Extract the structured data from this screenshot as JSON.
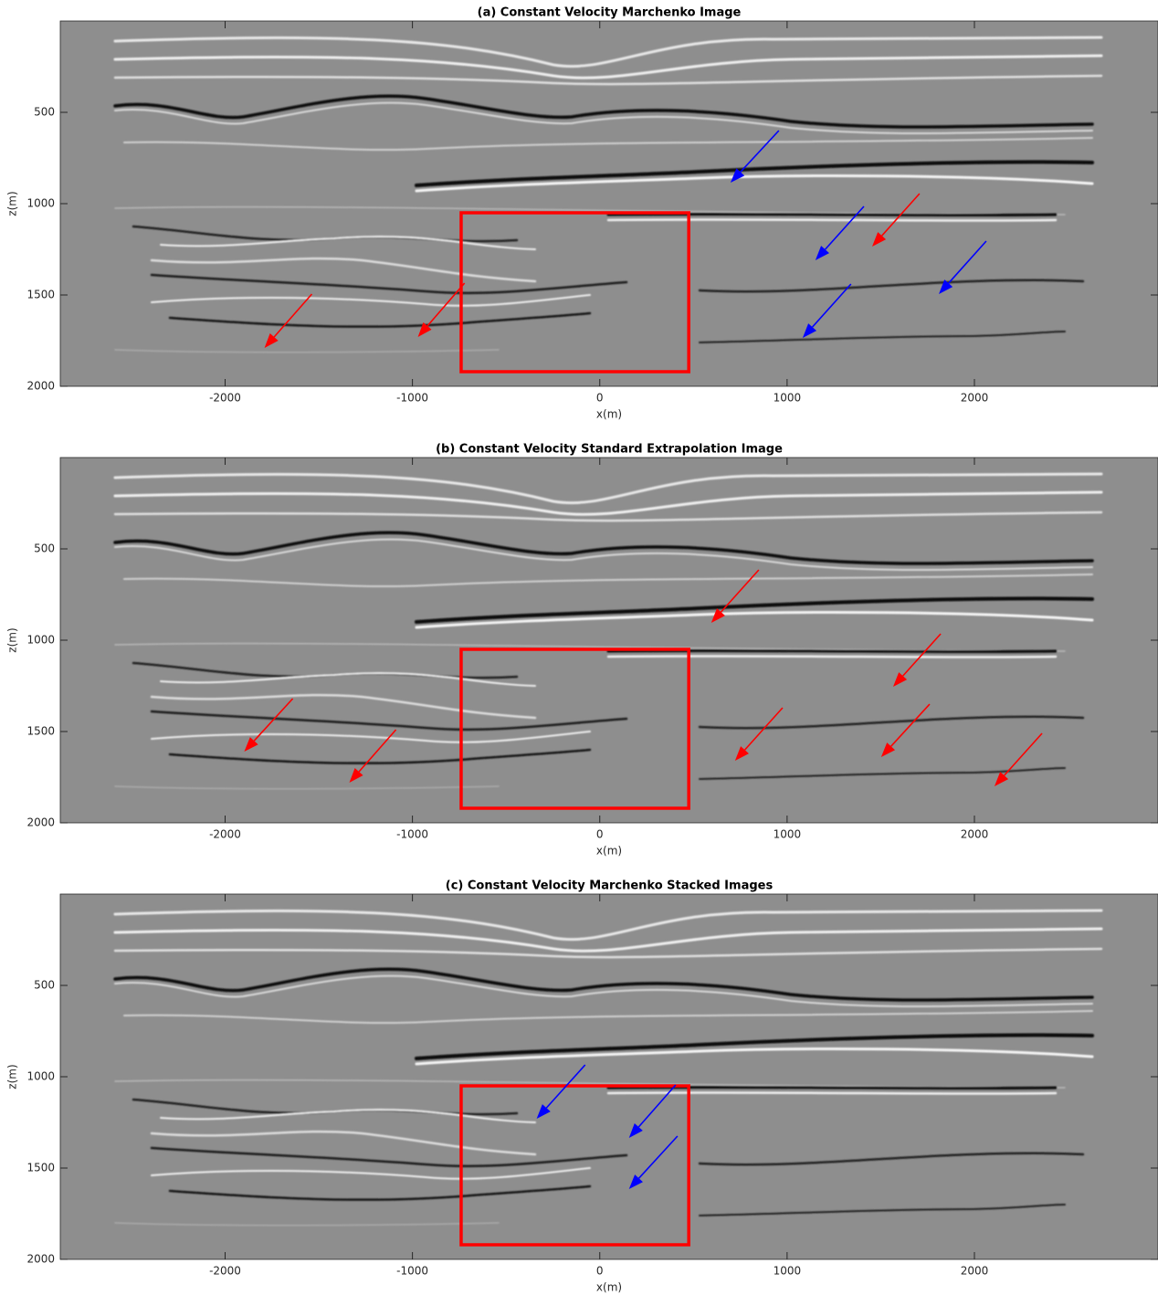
{
  "chart_data": [
    {
      "type": "image",
      "title": "(a) Constant Velocity Marchenko Image",
      "xlabel": "x(m)",
      "ylabel": "z(m)",
      "xlim": [
        -2880,
        2980
      ],
      "ylim": [
        0,
        2000
      ],
      "y_reversed": true,
      "xticks": [
        -2000,
        -1000,
        0,
        1000,
        2000
      ],
      "yticks": [
        500,
        1000,
        1500,
        2000
      ],
      "boxes": [
        {
          "x": [
            -740,
            475
          ],
          "y": [
            1050,
            1920
          ],
          "color": "#ff0000"
        }
      ],
      "arrows": [
        {
          "x": [
            956,
            698
          ],
          "y": [
            600,
            885
          ],
          "color": "#0000ff"
        },
        {
          "x": [
            1410,
            1151
          ],
          "y": [
            1015,
            1310
          ],
          "color": "#0000ff"
        },
        {
          "x": [
            1707,
            1454
          ],
          "y": [
            945,
            1235
          ],
          "color": "#ff0000"
        },
        {
          "x": [
            2063,
            1810
          ],
          "y": [
            1205,
            1495
          ],
          "color": "#0000ff"
        },
        {
          "x": [
            1341,
            1083
          ],
          "y": [
            1440,
            1735
          ],
          "color": "#0000ff"
        },
        {
          "x": [
            -1537,
            -1790
          ],
          "y": [
            1495,
            1790
          ],
          "color": "#ff0000"
        },
        {
          "x": [
            -722,
            -971
          ],
          "y": [
            1435,
            1730
          ],
          "color": "#ff0000"
        }
      ]
    },
    {
      "type": "image",
      "title": "(b) Constant Velocity Standard Extrapolation Image",
      "xlabel": "x(m)",
      "ylabel": "z(m)",
      "xlim": [
        -2880,
        2980
      ],
      "ylim": [
        0,
        2000
      ],
      "y_reversed": true,
      "xticks": [
        -2000,
        -1000,
        0,
        1000,
        2000
      ],
      "yticks": [
        500,
        1000,
        1500,
        2000
      ],
      "boxes": [
        {
          "x": [
            -740,
            475
          ],
          "y": [
            1050,
            1920
          ],
          "color": "#ff0000"
        }
      ],
      "arrows": [
        {
          "x": [
            849,
            595
          ],
          "y": [
            615,
            905
          ],
          "color": "#ff0000"
        },
        {
          "x": [
            1820,
            1566
          ],
          "y": [
            965,
            1255
          ],
          "color": "#ff0000"
        },
        {
          "x": [
            976,
            722
          ],
          "y": [
            1370,
            1660
          ],
          "color": "#ff0000"
        },
        {
          "x": [
            1761,
            1502
          ],
          "y": [
            1350,
            1640
          ],
          "color": "#ff0000"
        },
        {
          "x": [
            2361,
            2107
          ],
          "y": [
            1510,
            1800
          ],
          "color": "#ff0000"
        },
        {
          "x": [
            -1639,
            -1898
          ],
          "y": [
            1320,
            1610
          ],
          "color": "#ff0000"
        },
        {
          "x": [
            -1088,
            -1337
          ],
          "y": [
            1490,
            1780
          ],
          "color": "#ff0000"
        }
      ]
    },
    {
      "type": "image",
      "title": "(c) Constant Velocity Marchenko Stacked Images",
      "xlabel": "x(m)",
      "ylabel": "z(m)",
      "xlim": [
        -2880,
        2980
      ],
      "ylim": [
        0,
        2000
      ],
      "y_reversed": true,
      "xticks": [
        -2000,
        -1000,
        0,
        1000,
        2000
      ],
      "yticks": [
        500,
        1000,
        1500,
        2000
      ],
      "boxes": [
        {
          "x": [
            -740,
            475
          ],
          "y": [
            1050,
            1920
          ],
          "color": "#ff0000"
        }
      ],
      "arrows": [
        {
          "x": [
            -78,
            -337
          ],
          "y": [
            935,
            1230
          ],
          "color": "#0000ff"
        },
        {
          "x": [
            405,
            156
          ],
          "y": [
            1045,
            1335
          ],
          "color": "#0000ff"
        },
        {
          "x": [
            415,
            156
          ],
          "y": [
            1325,
            1615
          ],
          "color": "#0000ff"
        }
      ]
    }
  ]
}
